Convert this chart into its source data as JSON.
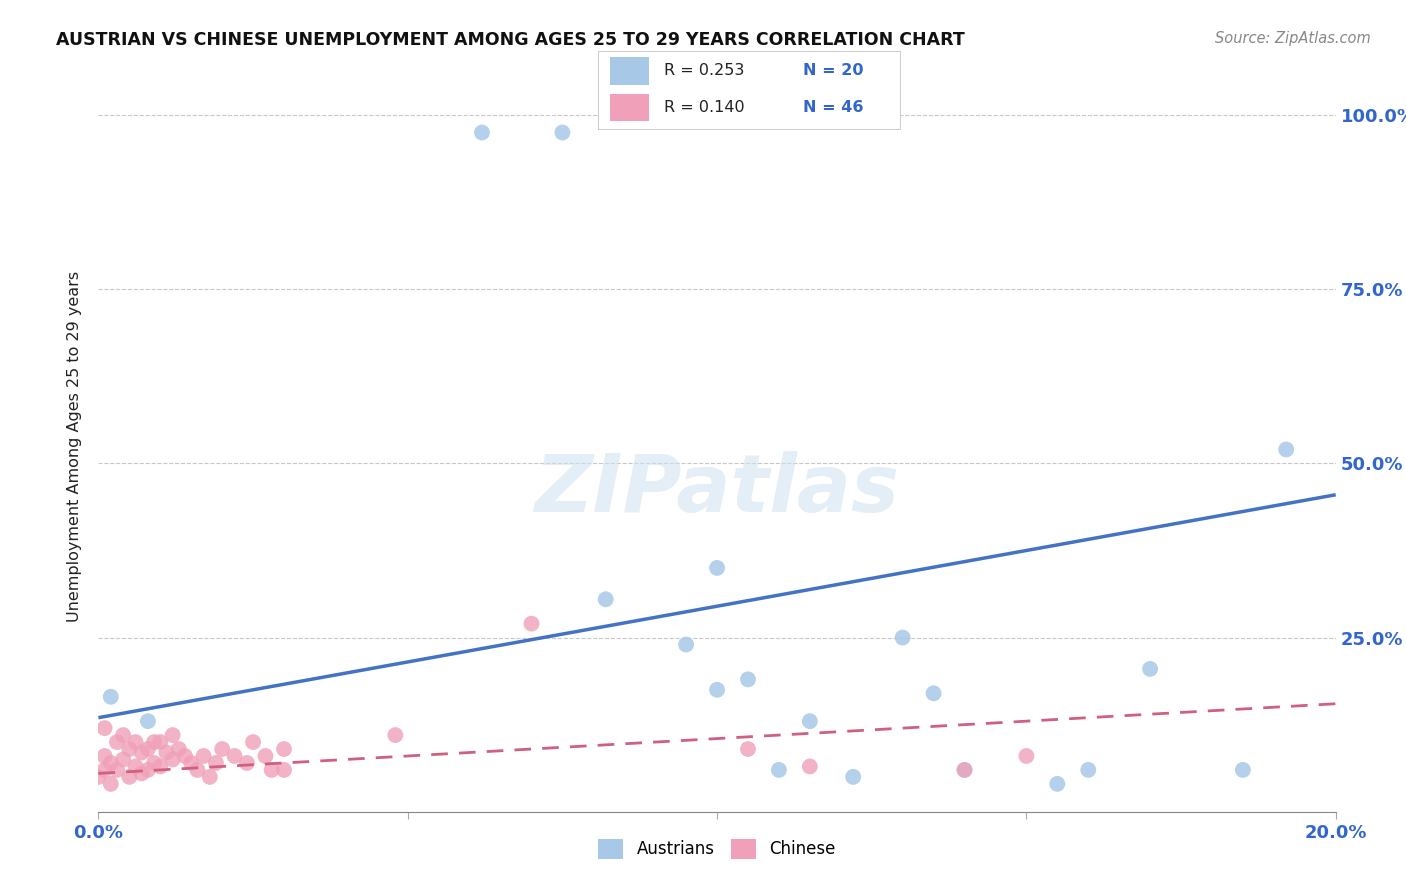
{
  "title": "AUSTRIAN VS CHINESE UNEMPLOYMENT AMONG AGES 25 TO 29 YEARS CORRELATION CHART",
  "source": "Source: ZipAtlas.com",
  "ylabel": "Unemployment Among Ages 25 to 29 years",
  "xlim": [
    0.0,
    0.2
  ],
  "ylim": [
    0.0,
    1.05
  ],
  "yticks": [
    0.0,
    0.25,
    0.5,
    0.75,
    1.0
  ],
  "xticks": [
    0.0,
    0.05,
    0.1,
    0.15,
    0.2
  ],
  "watermark_text": "ZIPatlas",
  "legend_r_aus": "R = 0.253",
  "legend_n_aus": "N = 20",
  "legend_r_chi": "R = 0.140",
  "legend_n_chi": "N = 46",
  "austrian_color": "#a8c8e8",
  "austrian_line_color": "#4472c4",
  "chinese_color": "#f0a0b8",
  "chinese_line_color": "#d06080",
  "grid_color": "#c8c8c8",
  "background_color": "#ffffff",
  "aus_line_x0": 0.0,
  "aus_line_y0": 0.135,
  "aus_line_x1": 0.2,
  "aus_line_y1": 0.455,
  "chi_line_x0": 0.0,
  "chi_line_y0": 0.055,
  "chi_line_x1": 0.2,
  "chi_line_y1": 0.155,
  "austrians_x": [
    0.002,
    0.008,
    0.062,
    0.075,
    0.082,
    0.095,
    0.1,
    0.105,
    0.11,
    0.115,
    0.122,
    0.13,
    0.135,
    0.14,
    0.155,
    0.16,
    0.17,
    0.185,
    0.192,
    0.1
  ],
  "austrians_y": [
    0.165,
    0.13,
    0.975,
    0.975,
    0.305,
    0.24,
    0.175,
    0.19,
    0.06,
    0.13,
    0.05,
    0.25,
    0.17,
    0.06,
    0.04,
    0.06,
    0.205,
    0.06,
    0.52,
    0.35
  ],
  "chinese_x": [
    0.0,
    0.001,
    0.001,
    0.001,
    0.002,
    0.002,
    0.003,
    0.003,
    0.004,
    0.004,
    0.005,
    0.005,
    0.006,
    0.006,
    0.007,
    0.007,
    0.008,
    0.008,
    0.009,
    0.009,
    0.01,
    0.01,
    0.011,
    0.012,
    0.012,
    0.013,
    0.014,
    0.015,
    0.016,
    0.017,
    0.018,
    0.019,
    0.02,
    0.022,
    0.024,
    0.025,
    0.027,
    0.028,
    0.03,
    0.03,
    0.048,
    0.07,
    0.105,
    0.115,
    0.14,
    0.15
  ],
  "chinese_y": [
    0.05,
    0.06,
    0.08,
    0.12,
    0.04,
    0.07,
    0.06,
    0.1,
    0.075,
    0.11,
    0.05,
    0.09,
    0.065,
    0.1,
    0.055,
    0.085,
    0.06,
    0.09,
    0.07,
    0.1,
    0.065,
    0.1,
    0.085,
    0.075,
    0.11,
    0.09,
    0.08,
    0.07,
    0.06,
    0.08,
    0.05,
    0.07,
    0.09,
    0.08,
    0.07,
    0.1,
    0.08,
    0.06,
    0.09,
    0.06,
    0.11,
    0.27,
    0.09,
    0.065,
    0.06,
    0.08
  ]
}
